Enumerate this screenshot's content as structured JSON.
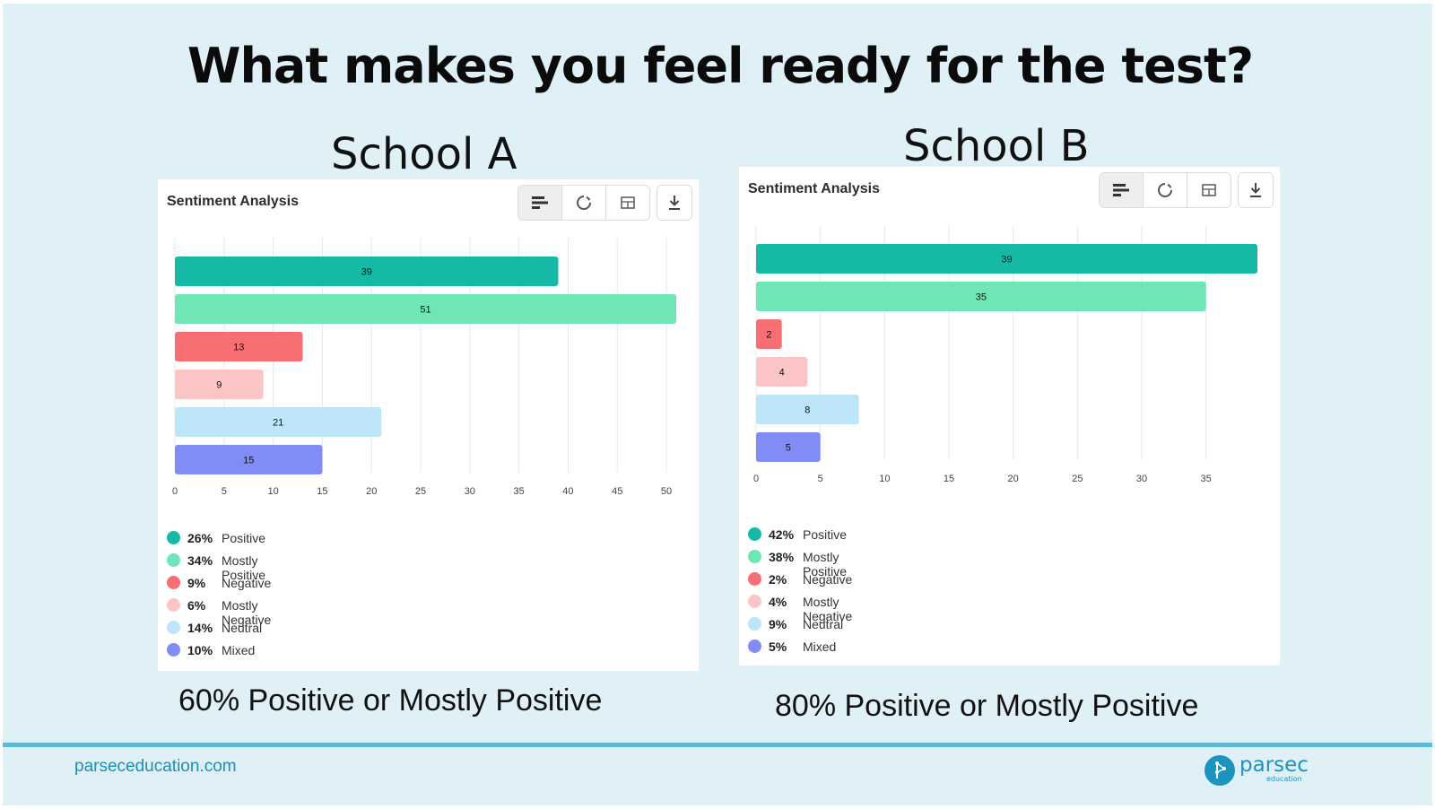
{
  "title": "What makes you feel ready for the test?",
  "panels": [
    {
      "school": "School A",
      "panel_title": "Sentiment Analysis",
      "caption": "60% Positive or Mostly Positive",
      "legend": [
        {
          "pct": "26%",
          "label": "Positive",
          "color": "#16b8a6"
        },
        {
          "pct": "34%",
          "label": "Mostly Positive",
          "color": "#6ee6b5"
        },
        {
          "pct": "9%",
          "label": "Negative",
          "color": "#f76f72"
        },
        {
          "pct": "6%",
          "label": "Mostly Negative",
          "color": "#fcc5c5"
        },
        {
          "pct": "14%",
          "label": "Neutral",
          "color": "#bde5f8"
        },
        {
          "pct": "10%",
          "label": "Mixed",
          "color": "#818cf6"
        }
      ]
    },
    {
      "school": "School B",
      "panel_title": "Sentiment Analysis",
      "caption": "80% Positive or Mostly Positive",
      "legend": [
        {
          "pct": "42%",
          "label": "Positive",
          "color": "#16b8a6"
        },
        {
          "pct": "38%",
          "label": "Mostly Positive",
          "color": "#6ee6b5"
        },
        {
          "pct": "2%",
          "label": "Negative",
          "color": "#f76f72"
        },
        {
          "pct": "4%",
          "label": "Mostly Negative",
          "color": "#fcc5c5"
        },
        {
          "pct": "9%",
          "label": "Neutral",
          "color": "#bde5f8"
        },
        {
          "pct": "5%",
          "label": "Mixed",
          "color": "#818cf6"
        }
      ]
    }
  ],
  "chart_data": [
    {
      "type": "bar",
      "orientation": "horizontal",
      "title": "Sentiment Analysis",
      "categories": [
        "Positive",
        "Mostly Positive",
        "Negative",
        "Mostly Negative",
        "Neutral",
        "Mixed"
      ],
      "values": [
        39,
        51,
        13,
        9,
        21,
        15
      ],
      "colors": [
        "#16b8a6",
        "#6ee6b5",
        "#f76f72",
        "#fcc5c5",
        "#bde5f8",
        "#818cf6"
      ],
      "xticks": [
        0,
        5,
        10,
        15,
        20,
        25,
        30,
        35,
        40,
        45,
        50
      ],
      "xlim": [
        0,
        51
      ],
      "grid": true
    },
    {
      "type": "bar",
      "orientation": "horizontal",
      "title": "Sentiment Analysis",
      "categories": [
        "Positive",
        "Mostly Positive",
        "Negative",
        "Mostly Negative",
        "Neutral",
        "Mixed"
      ],
      "values": [
        39,
        35,
        2,
        4,
        8,
        5
      ],
      "colors": [
        "#16b8a6",
        "#6ee6b5",
        "#f76f72",
        "#fcc5c5",
        "#bde5f8",
        "#818cf6"
      ],
      "xticks": [
        0,
        5,
        10,
        15,
        20,
        25,
        30,
        35
      ],
      "xlim": [
        0,
        39
      ],
      "grid": true
    }
  ],
  "footer": {
    "url": "parseceducation.com",
    "logo_word": "parsec",
    "logo_sub": "education"
  }
}
